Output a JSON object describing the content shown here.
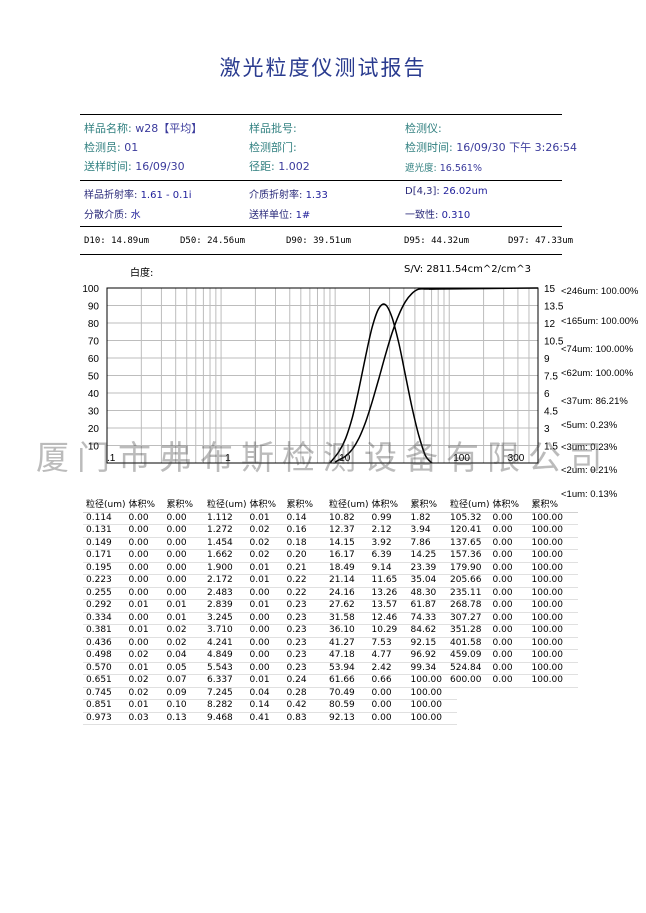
{
  "title": "激光粒度仪测试报告",
  "info_row1": [
    {
      "label": "样品名称:",
      "value": "w28【平均】"
    },
    {
      "label": "样品批号:",
      "value": ""
    },
    {
      "label": "检测仪:",
      "value": ""
    }
  ],
  "info_row2": [
    {
      "label": "检测员:",
      "value": "01"
    },
    {
      "label": "检测部门:",
      "value": ""
    },
    {
      "label": "检测时间:",
      "value": "16/09/30 下午 3:26:54"
    }
  ],
  "info_row3": [
    {
      "label": "送样时间:",
      "value": "16/09/30"
    },
    {
      "label": "径距:",
      "value": "1.002"
    },
    {
      "label": "遮光度:",
      "value": "16.561%"
    }
  ],
  "info_row4": [
    {
      "label": "样品折射率:",
      "value": "1.61 - 0.1i"
    },
    {
      "label": "介质折射率:",
      "value": "1.33"
    },
    {
      "label": "D[4,3]:",
      "value": "26.02um"
    }
  ],
  "info_row5": [
    {
      "label": "分散介质:",
      "value": "水"
    },
    {
      "label": "送样单位:",
      "value": "1#"
    },
    {
      "label": "一致性:",
      "value": "0.310"
    }
  ],
  "d_values": [
    {
      "label": "D10:",
      "value": "14.89um"
    },
    {
      "label": "D50:",
      "value": "24.56um"
    },
    {
      "label": "D90:",
      "value": "39.51um"
    },
    {
      "label": "D95:",
      "value": "44.32um"
    },
    {
      "label": "D97:",
      "value": "47.33um"
    }
  ],
  "whiteness_label": "白度:",
  "sv_label": "S/V:",
  "sv_value": "2811.54cm^2/cm^3",
  "watermark": "厦门市弗布斯检测设备有限公司",
  "chart_data": {
    "type": "line",
    "x_scale": "log",
    "xlim": [
      0.1,
      600
    ],
    "x_tick_labels": [
      ".1",
      "1",
      "10",
      "100",
      "300"
    ],
    "x_tick_values": [
      0.1,
      1,
      10,
      100,
      300
    ],
    "y_left_ticks": [
      "100",
      "90",
      "80",
      "70",
      "60",
      "50",
      "40",
      "30",
      "20",
      "10"
    ],
    "y_right_ticks": [
      "15",
      "13.5",
      "12",
      "10.5",
      "9",
      "7.5",
      "6",
      "4.5",
      "3",
      "1.5"
    ],
    "ylim_left": [
      0,
      100
    ],
    "ylim_right": [
      0,
      15
    ],
    "grid": true,
    "series": [
      {
        "name": "累积%",
        "axis": "left",
        "x": [
          10.0,
          10.82,
          12.37,
          14.15,
          16.17,
          18.49,
          21.14,
          24.16,
          27.62,
          31.58,
          36.1,
          41.27,
          47.18,
          53.94,
          61.66,
          70.49,
          80.59
        ],
        "y": [
          0.5,
          1.82,
          3.94,
          7.86,
          14.25,
          23.39,
          35.04,
          48.3,
          61.87,
          74.33,
          84.62,
          92.15,
          96.92,
          99.34,
          100.0,
          100.0,
          100.0
        ]
      },
      {
        "name": "体积%",
        "axis": "right",
        "x": [
          9.0,
          10.82,
          12.37,
          14.15,
          16.17,
          18.49,
          21.14,
          24.16,
          27.62,
          31.58,
          36.1,
          41.27,
          47.18,
          53.94,
          61.66,
          70.49
        ],
        "y": [
          0.0,
          0.99,
          2.12,
          3.92,
          6.39,
          9.14,
          11.65,
          13.26,
          13.57,
          12.46,
          10.29,
          7.53,
          4.77,
          2.42,
          0.66,
          0.0
        ]
      }
    ],
    "right_labels": [
      "<246um: 100.00%",
      "<165um: 100.00%",
      "<74um: 100.00%",
      "<62um: 100.00%",
      "<37um: 86.21%",
      "<5um: 0.23%",
      "<3um: 0.23%",
      "<2um: 0.21%",
      "<1um: 0.13%"
    ]
  },
  "table": {
    "header": [
      "粒径(um)",
      "体积%",
      "累积%"
    ],
    "groups": [
      [
        [
          "0.114",
          "0.00",
          "0.00"
        ],
        [
          "0.131",
          "0.00",
          "0.00"
        ],
        [
          "0.149",
          "0.00",
          "0.00"
        ],
        [
          "0.171",
          "0.00",
          "0.00"
        ],
        [
          "0.195",
          "0.00",
          "0.00"
        ],
        [
          "0.223",
          "0.00",
          "0.00"
        ],
        [
          "0.255",
          "0.00",
          "0.00"
        ],
        [
          "0.292",
          "0.01",
          "0.01"
        ],
        [
          "0.334",
          "0.00",
          "0.01"
        ],
        [
          "0.381",
          "0.01",
          "0.02"
        ],
        [
          "0.436",
          "0.00",
          "0.02"
        ],
        [
          "0.498",
          "0.02",
          "0.04"
        ],
        [
          "0.570",
          "0.01",
          "0.05"
        ],
        [
          "0.651",
          "0.02",
          "0.07"
        ],
        [
          "0.745",
          "0.02",
          "0.09"
        ],
        [
          "0.851",
          "0.01",
          "0.10"
        ],
        [
          "0.973",
          "0.03",
          "0.13"
        ]
      ],
      [
        [
          "1.112",
          "0.01",
          "0.14"
        ],
        [
          "1.272",
          "0.02",
          "0.16"
        ],
        [
          "1.454",
          "0.02",
          "0.18"
        ],
        [
          "1.662",
          "0.02",
          "0.20"
        ],
        [
          "1.900",
          "0.01",
          "0.21"
        ],
        [
          "2.172",
          "0.01",
          "0.22"
        ],
        [
          "2.483",
          "0.00",
          "0.22"
        ],
        [
          "2.839",
          "0.01",
          "0.23"
        ],
        [
          "3.245",
          "0.00",
          "0.23"
        ],
        [
          "3.710",
          "0.00",
          "0.23"
        ],
        [
          "4.241",
          "0.00",
          "0.23"
        ],
        [
          "4.849",
          "0.00",
          "0.23"
        ],
        [
          "5.543",
          "0.00",
          "0.23"
        ],
        [
          "6.337",
          "0.01",
          "0.24"
        ],
        [
          "7.245",
          "0.04",
          "0.28"
        ],
        [
          "8.282",
          "0.14",
          "0.42"
        ],
        [
          "9.468",
          "0.41",
          "0.83"
        ]
      ],
      [
        [
          "10.82",
          "0.99",
          "1.82"
        ],
        [
          "12.37",
          "2.12",
          "3.94"
        ],
        [
          "14.15",
          "3.92",
          "7.86"
        ],
        [
          "16.17",
          "6.39",
          "14.25"
        ],
        [
          "18.49",
          "9.14",
          "23.39"
        ],
        [
          "21.14",
          "11.65",
          "35.04"
        ],
        [
          "24.16",
          "13.26",
          "48.30"
        ],
        [
          "27.62",
          "13.57",
          "61.87"
        ],
        [
          "31.58",
          "12.46",
          "74.33"
        ],
        [
          "36.10",
          "10.29",
          "84.62"
        ],
        [
          "41.27",
          "7.53",
          "92.15"
        ],
        [
          "47.18",
          "4.77",
          "96.92"
        ],
        [
          "53.94",
          "2.42",
          "99.34"
        ],
        [
          "61.66",
          "0.66",
          "100.00"
        ],
        [
          "70.49",
          "0.00",
          "100.00"
        ],
        [
          "80.59",
          "0.00",
          "100.00"
        ],
        [
          "92.13",
          "0.00",
          "100.00"
        ]
      ],
      [
        [
          "105.32",
          "0.00",
          "100.00"
        ],
        [
          "120.41",
          "0.00",
          "100.00"
        ],
        [
          "137.65",
          "0.00",
          "100.00"
        ],
        [
          "157.36",
          "0.00",
          "100.00"
        ],
        [
          "179.90",
          "0.00",
          "100.00"
        ],
        [
          "205.66",
          "0.00",
          "100.00"
        ],
        [
          "235.11",
          "0.00",
          "100.00"
        ],
        [
          "268.78",
          "0.00",
          "100.00"
        ],
        [
          "307.27",
          "0.00",
          "100.00"
        ],
        [
          "351.28",
          "0.00",
          "100.00"
        ],
        [
          "401.58",
          "0.00",
          "100.00"
        ],
        [
          "459.09",
          "0.00",
          "100.00"
        ],
        [
          "524.84",
          "0.00",
          "100.00"
        ],
        [
          "600.00",
          "0.00",
          "100.00"
        ]
      ]
    ]
  }
}
